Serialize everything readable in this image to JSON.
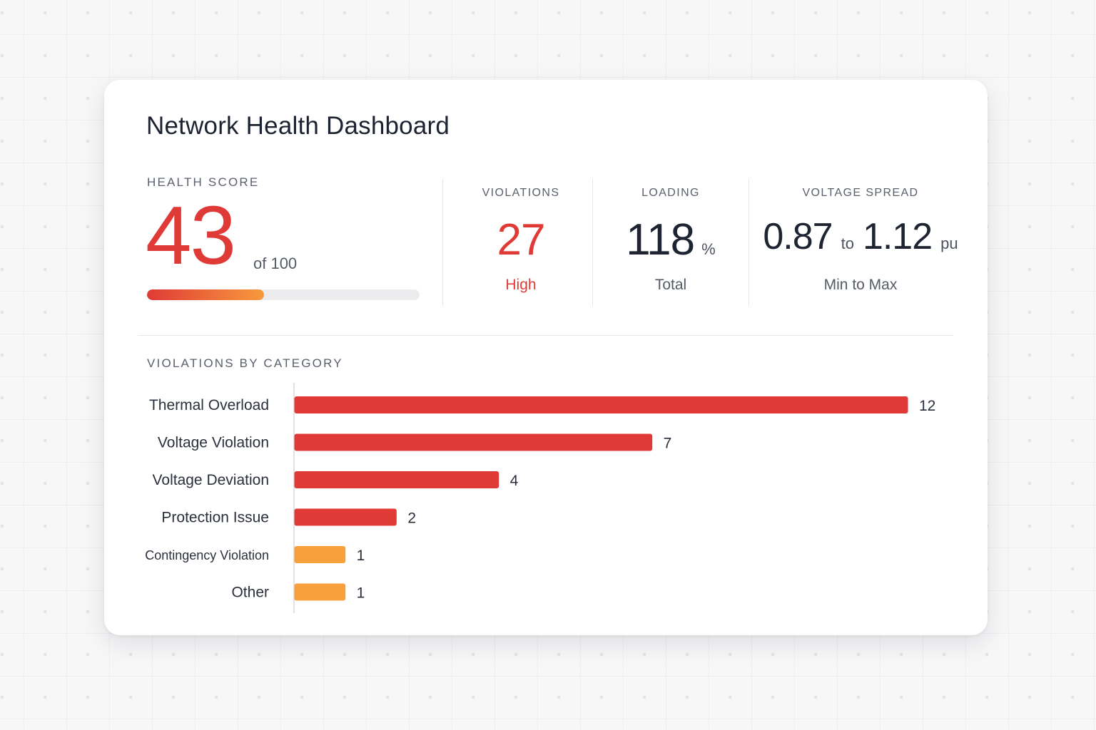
{
  "title": "Network Health Dashboard",
  "health": {
    "label": "HEALTH SCORE",
    "score": "43",
    "of_text": "of 100",
    "score_fraction": 0.43
  },
  "kpis": {
    "violations": {
      "label": "VIOLATIONS",
      "value": "27",
      "sub": "High"
    },
    "loading": {
      "label": "LOADING",
      "value": "118",
      "unit": "%",
      "sub": "Total"
    },
    "voltage": {
      "label": "VOLTAGE SPREAD",
      "min": "0.87",
      "sep": "to",
      "max": "1.12",
      "unit": "pu",
      "sub": "Min to Max"
    }
  },
  "colors": {
    "critical": "#e03a36",
    "warning": "#f7a03c"
  },
  "chart_data": {
    "type": "bar",
    "orientation": "horizontal",
    "title": "VIOLATIONS BY CATEGORY",
    "categories": [
      "Thermal Overload",
      "Voltage Violation",
      "Voltage Deviation",
      "Protection Issue",
      "Contingency Violation",
      "Other"
    ],
    "values": [
      12,
      7,
      4,
      2,
      1,
      1
    ],
    "bar_colors": [
      "#e03a36",
      "#e03a36",
      "#e03a36",
      "#e03a36",
      "#f7a03c",
      "#f7a03c"
    ],
    "xlim": [
      0,
      12
    ],
    "grid": false
  }
}
